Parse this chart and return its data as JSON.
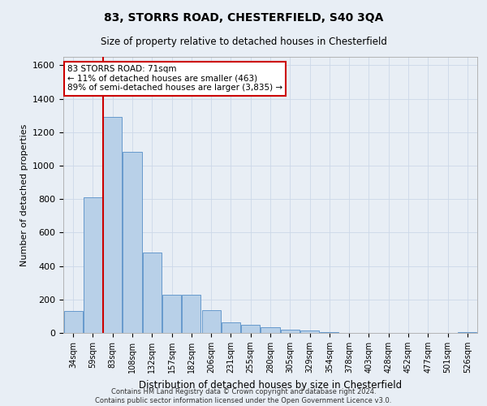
{
  "title": "83, STORRS ROAD, CHESTERFIELD, S40 3QA",
  "subtitle": "Size of property relative to detached houses in Chesterfield",
  "xlabel": "Distribution of detached houses by size in Chesterfield",
  "ylabel": "Number of detached properties",
  "footer_line1": "Contains HM Land Registry data © Crown copyright and database right 2024.",
  "footer_line2": "Contains public sector information licensed under the Open Government Licence v3.0.",
  "bar_labels": [
    "34sqm",
    "59sqm",
    "83sqm",
    "108sqm",
    "132sqm",
    "157sqm",
    "182sqm",
    "206sqm",
    "231sqm",
    "255sqm",
    "280sqm",
    "305sqm",
    "329sqm",
    "354sqm",
    "378sqm",
    "403sqm",
    "428sqm",
    "452sqm",
    "477sqm",
    "501sqm",
    "526sqm"
  ],
  "bar_values": [
    130,
    810,
    1290,
    1080,
    480,
    230,
    230,
    135,
    65,
    50,
    35,
    20,
    15,
    5,
    2,
    2,
    1,
    1,
    1,
    1,
    5
  ],
  "bar_color": "#b8d0e8",
  "bar_edge_color": "#6699cc",
  "vline_x_index": 2,
  "vline_color": "#cc0000",
  "ylim": [
    0,
    1650
  ],
  "yticks": [
    0,
    200,
    400,
    600,
    800,
    1000,
    1200,
    1400,
    1600
  ],
  "annotation_text": "83 STORRS ROAD: 71sqm\n← 11% of detached houses are smaller (463)\n89% of semi-detached houses are larger (3,835) →",
  "annotation_box_color": "#ffffff",
  "annotation_box_edge": "#cc0000",
  "grid_color": "#ccd8e8",
  "background_color": "#e8eef5"
}
